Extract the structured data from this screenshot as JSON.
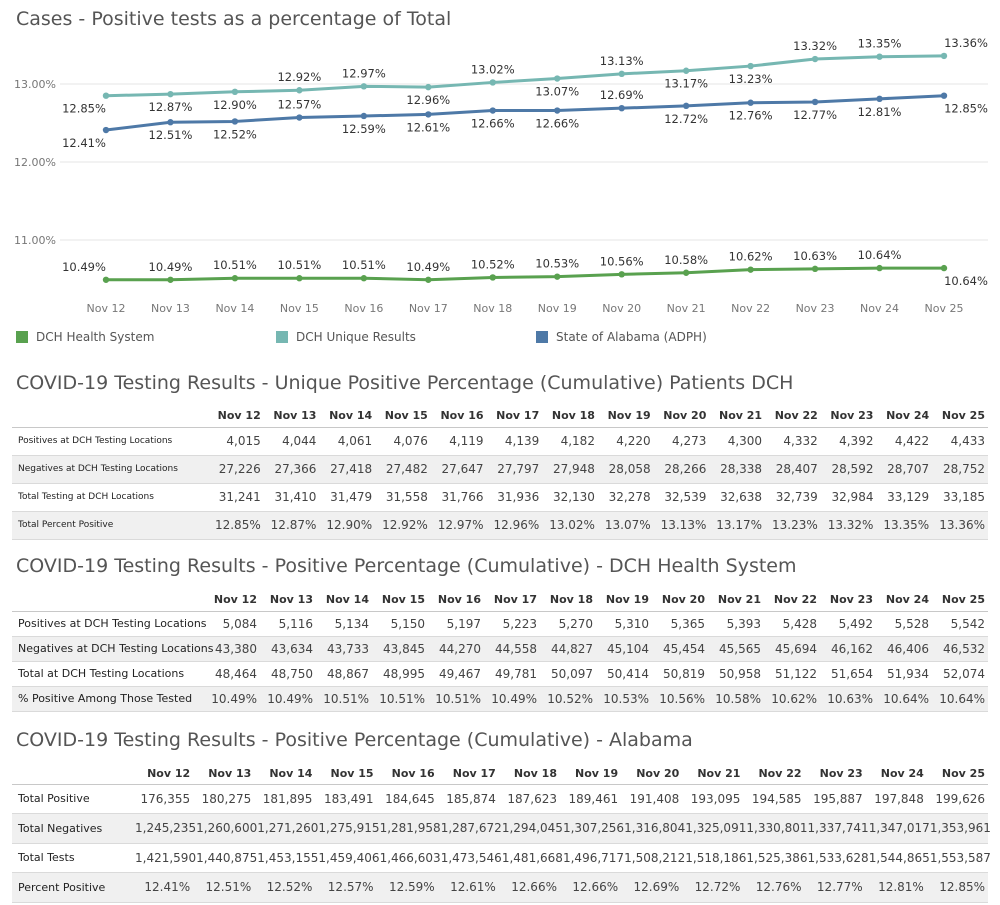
{
  "chart_title": "Cases - Positive tests as a percentage of Total",
  "chart_data": {
    "type": "line",
    "categories": [
      "Nov 12",
      "Nov 13",
      "Nov 14",
      "Nov 15",
      "Nov 16",
      "Nov 17",
      "Nov 18",
      "Nov 19",
      "Nov 20",
      "Nov 21",
      "Nov 22",
      "Nov 23",
      "Nov 24",
      "Nov 25"
    ],
    "y_ticks": [
      "11.00%",
      "12.00%",
      "13.00%"
    ],
    "ylim": [
      10.0,
      13.5
    ],
    "grid": true,
    "series": [
      {
        "name": "DCH Health System",
        "color": "#59a14f",
        "values": [
          10.49,
          10.49,
          10.51,
          10.51,
          10.51,
          10.49,
          10.52,
          10.53,
          10.56,
          10.58,
          10.62,
          10.63,
          10.64,
          10.64
        ],
        "labels": [
          "10.49%",
          "10.49%",
          "10.51%",
          "10.51%",
          "10.51%",
          "10.49%",
          "10.52%",
          "10.53%",
          "10.56%",
          "10.58%",
          "10.62%",
          "10.63%",
          "10.64%",
          "10.64%"
        ]
      },
      {
        "name": "DCH Unique Results",
        "color": "#76b7b2",
        "values": [
          12.85,
          12.87,
          12.9,
          12.92,
          12.97,
          12.96,
          13.02,
          13.07,
          13.13,
          13.17,
          13.23,
          13.32,
          13.35,
          13.36
        ],
        "labels": [
          "12.85%",
          "12.87%",
          "12.90%",
          "12.92%",
          "12.97%",
          "12.96%",
          "13.02%",
          "13.07%",
          "13.13%",
          "13.17%",
          "13.23%",
          "13.32%",
          "13.35%",
          "13.36%"
        ]
      },
      {
        "name": "State of Alabama (ADPH)",
        "color": "#4e79a7",
        "values": [
          12.41,
          12.51,
          12.52,
          12.57,
          12.59,
          12.61,
          12.66,
          12.66,
          12.69,
          12.72,
          12.76,
          12.77,
          12.81,
          12.85
        ],
        "labels": [
          "12.41%",
          "12.51%",
          "12.52%",
          "12.57%",
          "12.59%",
          "12.61%",
          "12.66%",
          "12.66%",
          "12.69%",
          "12.72%",
          "12.76%",
          "12.77%",
          "12.81%",
          "12.85%"
        ]
      }
    ],
    "legend": [
      "DCH Health System",
      "DCH Unique Results",
      "State of Alabama (ADPH)"
    ]
  },
  "tables": [
    {
      "title": "COVID-19 Testing Results - Unique Positive Percentage (Cumulative) Patients DCH",
      "columns": [
        "Nov 12",
        "Nov 13",
        "Nov 14",
        "Nov 15",
        "Nov 16",
        "Nov 17",
        "Nov 18",
        "Nov 19",
        "Nov 20",
        "Nov 21",
        "Nov 22",
        "Nov 23",
        "Nov 24",
        "Nov 25"
      ],
      "rows": [
        {
          "label": "Positives at DCH Testing Locations",
          "values": [
            "4,015",
            "4,044",
            "4,061",
            "4,076",
            "4,119",
            "4,139",
            "4,182",
            "4,220",
            "4,273",
            "4,300",
            "4,332",
            "4,392",
            "4,422",
            "4,433"
          ]
        },
        {
          "label": "Negatives at DCH Testing Locations",
          "values": [
            "27,226",
            "27,366",
            "27,418",
            "27,482",
            "27,647",
            "27,797",
            "27,948",
            "28,058",
            "28,266",
            "28,338",
            "28,407",
            "28,592",
            "28,707",
            "28,752"
          ]
        },
        {
          "label": "Total Testing at DCH Locations",
          "values": [
            "31,241",
            "31,410",
            "31,479",
            "31,558",
            "31,766",
            "31,936",
            "32,130",
            "32,278",
            "32,539",
            "32,638",
            "32,739",
            "32,984",
            "33,129",
            "33,185"
          ]
        },
        {
          "label": "Total Percent Positive",
          "values": [
            "12.85%",
            "12.87%",
            "12.90%",
            "12.92%",
            "12.97%",
            "12.96%",
            "13.02%",
            "13.07%",
            "13.13%",
            "13.17%",
            "13.23%",
            "13.32%",
            "13.35%",
            "13.36%"
          ]
        }
      ]
    },
    {
      "title": "COVID-19 Testing Results - Positive Percentage (Cumulative) - DCH Health System",
      "columns": [
        "Nov 12",
        "Nov 13",
        "Nov 14",
        "Nov 15",
        "Nov 16",
        "Nov 17",
        "Nov 18",
        "Nov 19",
        "Nov 20",
        "Nov 21",
        "Nov 22",
        "Nov 23",
        "Nov 24",
        "Nov 25"
      ],
      "rows": [
        {
          "label": "Positives at DCH Testing Locations",
          "values": [
            "5,084",
            "5,116",
            "5,134",
            "5,150",
            "5,197",
            "5,223",
            "5,270",
            "5,310",
            "5,365",
            "5,393",
            "5,428",
            "5,492",
            "5,528",
            "5,542"
          ]
        },
        {
          "label": "Negatives at DCH Testing Locations",
          "values": [
            "43,380",
            "43,634",
            "43,733",
            "43,845",
            "44,270",
            "44,558",
            "44,827",
            "45,104",
            "45,454",
            "45,565",
            "45,694",
            "46,162",
            "46,406",
            "46,532"
          ]
        },
        {
          "label": "Total at DCH Testing Locations",
          "values": [
            "48,464",
            "48,750",
            "48,867",
            "48,995",
            "49,467",
            "49,781",
            "50,097",
            "50,414",
            "50,819",
            "50,958",
            "51,122",
            "51,654",
            "51,934",
            "52,074"
          ]
        },
        {
          "label": "% Positive Among Those Tested",
          "values": [
            "10.49%",
            "10.49%",
            "10.51%",
            "10.51%",
            "10.51%",
            "10.49%",
            "10.52%",
            "10.53%",
            "10.56%",
            "10.58%",
            "10.62%",
            "10.63%",
            "10.64%",
            "10.64%"
          ]
        }
      ]
    },
    {
      "title": "COVID-19 Testing Results - Positive Percentage (Cumulative) - Alabama",
      "columns": [
        "Nov 12",
        "Nov 13",
        "Nov 14",
        "Nov 15",
        "Nov 16",
        "Nov 17",
        "Nov 18",
        "Nov 19",
        "Nov 20",
        "Nov 21",
        "Nov 22",
        "Nov 23",
        "Nov 24",
        "Nov 25"
      ],
      "rows": [
        {
          "label": "Total Positive",
          "values": [
            "176,355",
            "180,275",
            "181,895",
            "183,491",
            "184,645",
            "185,874",
            "187,623",
            "189,461",
            "191,408",
            "193,095",
            "194,585",
            "195,887",
            "197,848",
            "199,626"
          ]
        },
        {
          "label": "Total Negatives",
          "values": [
            "1,245,235",
            "1,260,600",
            "1,271,260",
            "1,275,915",
            "1,281,958",
            "1,287,672",
            "1,294,045",
            "1,307,256",
            "1,316,804",
            "1,325,091",
            "1,330,801",
            "1,337,741",
            "1,347,017",
            "1,353,961"
          ]
        },
        {
          "label": "Total Tests",
          "values": [
            "1,421,590",
            "1,440,875",
            "1,453,155",
            "1,459,406",
            "1,466,603",
            "1,473,546",
            "1,481,668",
            "1,496,717",
            "1,508,212",
            "1,518,186",
            "1,525,386",
            "1,533,628",
            "1,544,865",
            "1,553,587"
          ]
        },
        {
          "label": "Percent Positive",
          "values": [
            "12.41%",
            "12.51%",
            "12.52%",
            "12.57%",
            "12.59%",
            "12.61%",
            "12.66%",
            "12.66%",
            "12.69%",
            "12.72%",
            "12.76%",
            "12.77%",
            "12.81%",
            "12.85%"
          ]
        }
      ]
    }
  ]
}
